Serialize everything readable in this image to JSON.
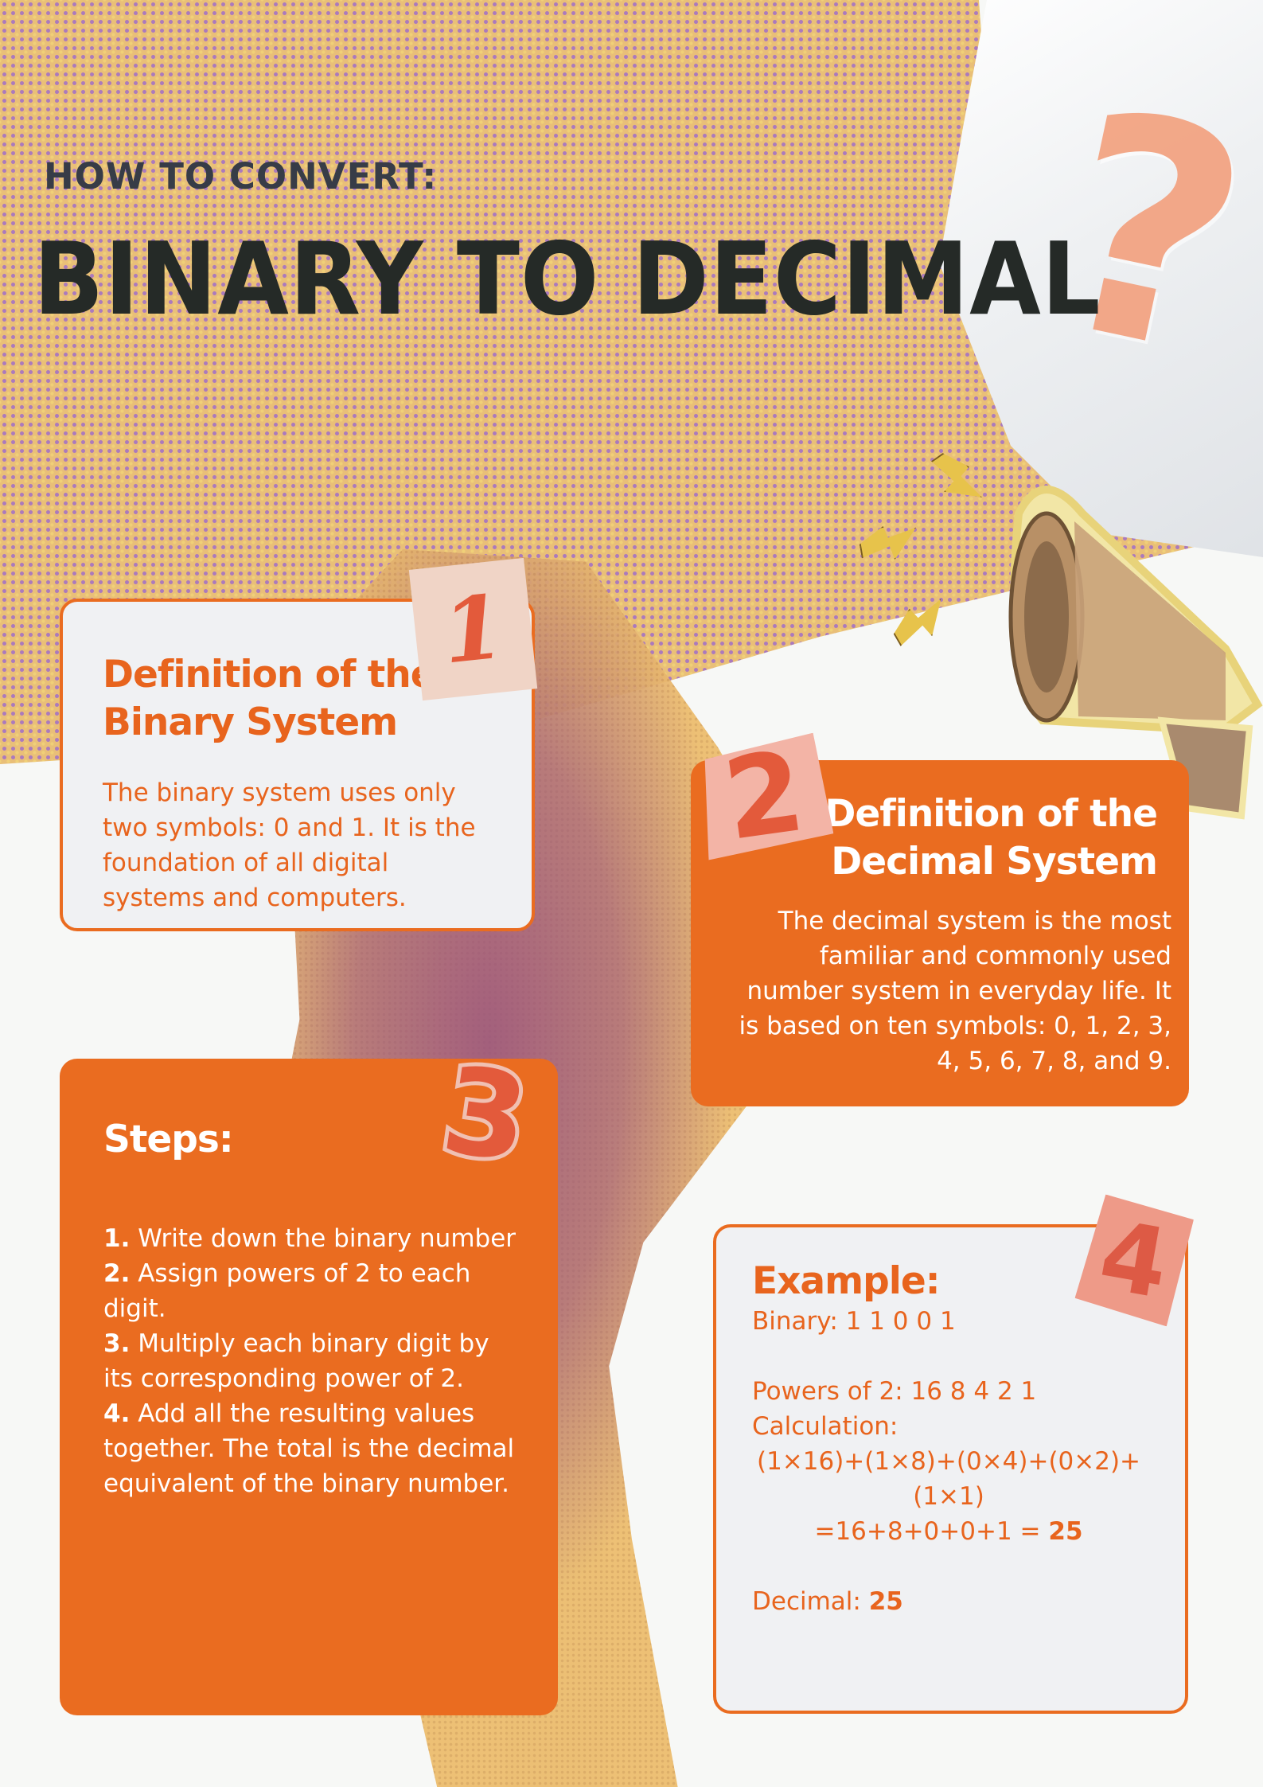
{
  "header": {
    "kicker": "HOW TO CONVERT:",
    "title": "BINARY TO DECIMAL"
  },
  "badges": [
    "1",
    "2",
    "3",
    "4"
  ],
  "card_binary": {
    "heading_line1": "Definition of the",
    "heading_line2": "Binary System",
    "body": "The binary system uses only two symbols: 0 and 1. It is the foundation of all digital systems and computers."
  },
  "card_decimal": {
    "heading_line1": "Definition of the",
    "heading_line2": "Decimal System",
    "body": "The decimal system is the most familiar and commonly used number system in everyday life. It is based on ten symbols: 0, 1, 2, 3, 4, 5, 6, 7, 8, and 9."
  },
  "card_steps": {
    "heading": "Steps:",
    "steps": [
      {
        "num": "1.",
        "text": " Write down the binary number"
      },
      {
        "num": "2.",
        "text": " Assign powers of 2 to each digit."
      },
      {
        "num": "3.",
        "text": " Multiply each binary digit by its corresponding power of 2."
      },
      {
        "num": "4.",
        "text": " Add all the resulting values together. The total is the decimal equivalent of the binary number."
      }
    ]
  },
  "card_example": {
    "heading": "Example:",
    "binary": "Binary: 1 1 0 0 1",
    "powers": "Powers of 2: 16 8 4 2 1",
    "calc_label": "Calculation:",
    "calc_expr": "(1×16)+(1×8)+(0×4)+(0×2)+(1×1)",
    "calc_sum": "=16+8+0+0+1 = ",
    "calc_result": "25",
    "decimal_label": "Decimal: ",
    "decimal_value": "25"
  },
  "colors": {
    "accent": "#ea6c20",
    "title": "#252a27",
    "kicker": "#373c47"
  }
}
